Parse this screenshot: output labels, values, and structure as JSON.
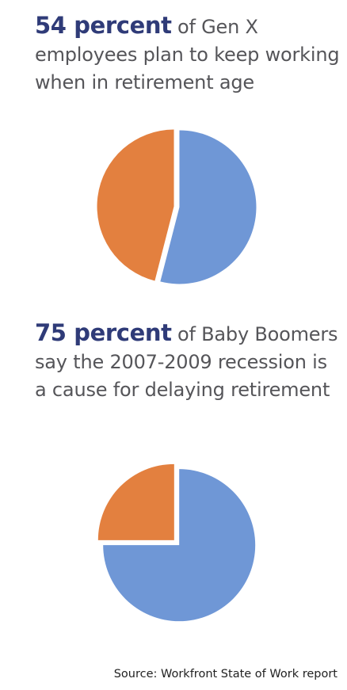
{
  "chart_data": [
    {
      "type": "pie",
      "highlight": "54 percent",
      "caption": " of Gen X employees plan to keep working when in retirement age",
      "slices": [
        {
          "value": 54,
          "color": "#6f97d6"
        },
        {
          "value": 46,
          "color": "#e3803f"
        }
      ]
    },
    {
      "type": "pie",
      "highlight": "75 percent",
      "caption": " of Baby Boomers say the 2007-2009 recession is a cause for delaying retirement",
      "slices": [
        {
          "value": 75,
          "color": "#6f97d6"
        },
        {
          "value": 25,
          "color": "#e3803f"
        }
      ]
    }
  ],
  "source": "Source: Workfront State of Work report"
}
